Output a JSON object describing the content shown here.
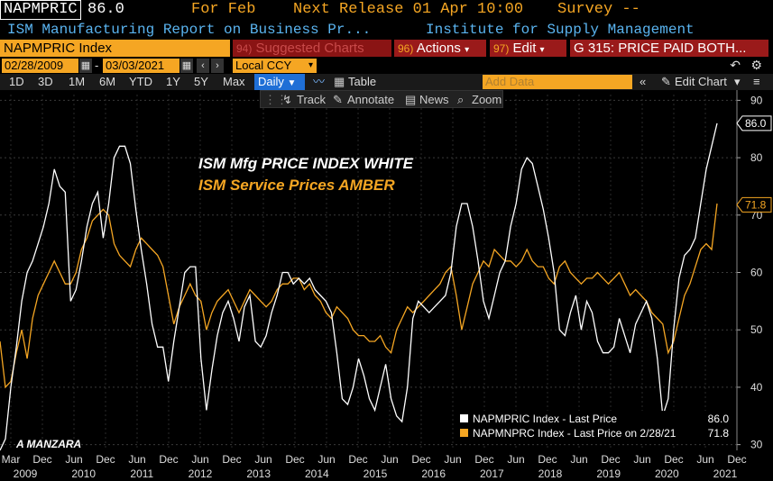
{
  "header": {
    "ticker": "NAPMPRIC",
    "last_value": "86.0",
    "for_label": "For Feb",
    "next_release": "Next Release 01 Apr 10:00",
    "survey": "Survey --"
  },
  "subheader": {
    "description": "ISM Manufacturing Report on Business Pr...",
    "source": "Institute for Supply Management"
  },
  "command_bar": {
    "index_field": "NAPMPRIC Index",
    "suggested_num": "94)",
    "suggested_label": "Suggested Charts",
    "actions_num": "96)",
    "actions_label": "Actions",
    "edit_num": "97)",
    "edit_label": "Edit",
    "graph_title": "G 315: PRICE PAID BOTH..."
  },
  "range": {
    "start": "02/28/2009",
    "end": "03/03/2021",
    "currency": "Local CCY"
  },
  "periods": [
    "1D",
    "3D",
    "1M",
    "6M",
    "YTD",
    "1Y",
    "5Y",
    "Max"
  ],
  "frequency": "Daily",
  "table_label": "Table",
  "add_data_placeholder": "Add Data",
  "edit_chart_label": "Edit Chart",
  "toolbar": {
    "track": "Track",
    "annotate": "Annotate",
    "news": "News",
    "zoom": "Zoom"
  },
  "overlay_titles": {
    "white": "ISM Mfg PRICE INDEX WHITE",
    "amber": "ISM Service Prices AMBER",
    "author": "A MANZARA"
  },
  "legend": [
    {
      "label": "NAPMPRIC Index - Last Price",
      "value": "86.0",
      "color": "#ffffff"
    },
    {
      "label": "NAPMNPRC Index - Last Price on 2/28/21",
      "value": "71.8",
      "color": "#f5a623"
    }
  ],
  "colors": {
    "white_series": "#ffffff",
    "amber_series": "#f5a623",
    "accent": "#f5a623",
    "button_red": "#9a1a1a",
    "blue": "#1f6fd6"
  },
  "chart_data": {
    "type": "line",
    "ylim": [
      29,
      91
    ],
    "yticks": [
      30,
      40,
      50,
      60,
      70,
      80,
      90
    ],
    "x_month_labels": [
      "Mar",
      "Dec",
      "Jun",
      "Dec",
      "Jun",
      "Dec",
      "Jun",
      "Dec",
      "Jun",
      "Dec",
      "Jun",
      "Dec",
      "Jun",
      "Dec",
      "Jun",
      "Dec",
      "Jun",
      "Dec",
      "Jun",
      "Dec",
      "Jun",
      "Dec",
      "Jun",
      "Dec"
    ],
    "x_year_labels": [
      "2009",
      "2010",
      "2011",
      "2012",
      "2013",
      "2014",
      "2015",
      "2016",
      "2017",
      "2018",
      "2019",
      "2020",
      "2021"
    ],
    "last_labels": [
      {
        "value": "86.0",
        "y": 86.0,
        "color": "#ffffff"
      },
      {
        "value": "71.8",
        "y": 71.8,
        "color": "#f5a623"
      }
    ],
    "series": [
      {
        "name": "NAPMPRIC Index - Last Price",
        "color": "#ffffff",
        "values": [
          29,
          31,
          40,
          47,
          55,
          60,
          62,
          65,
          68,
          72,
          78,
          75,
          74,
          55,
          57,
          62,
          68,
          72,
          74,
          66,
          72,
          80,
          82,
          82,
          79,
          71,
          64,
          58,
          51,
          47,
          47,
          41,
          48,
          54,
          60,
          61,
          61,
          45,
          36,
          43,
          49,
          53,
          55,
          52,
          48,
          54,
          56,
          48,
          47,
          49,
          53,
          56,
          60,
          60,
          58,
          59,
          58,
          59,
          57,
          56,
          55,
          53,
          46,
          38,
          37,
          40,
          45,
          42,
          38,
          36,
          40,
          44,
          38,
          35,
          34,
          40,
          52,
          55,
          54,
          53,
          54,
          55,
          56,
          60,
          68,
          72,
          72,
          68,
          62,
          55,
          52,
          56,
          60,
          62,
          68,
          72,
          78,
          80,
          79,
          75,
          71,
          66,
          60,
          50,
          49,
          53,
          56,
          50,
          55,
          53,
          48,
          46,
          46,
          47,
          52,
          49,
          46,
          51,
          53,
          55,
          52,
          45,
          35,
          38,
          50,
          59,
          63,
          64,
          66,
          72,
          78,
          82,
          86
        ]
      },
      {
        "name": "NAPMNPRC Index - Last Price on 2/28/21",
        "color": "#f5a623",
        "values": [
          48,
          40,
          41,
          46,
          50,
          45,
          52,
          56,
          58,
          60,
          62,
          60,
          58,
          58,
          60,
          64,
          66,
          69,
          70,
          71,
          70,
          65,
          63,
          62,
          61,
          64,
          66,
          65,
          64,
          63,
          61,
          56,
          51,
          54,
          56,
          58,
          56,
          55,
          50,
          53,
          55,
          56,
          57,
          55,
          53,
          55,
          57,
          56,
          55,
          54,
          55,
          57,
          58,
          58,
          59,
          59,
          57,
          58,
          56,
          55,
          53,
          52,
          54,
          53,
          52,
          50,
          49,
          49,
          48,
          48,
          49,
          47,
          46,
          50,
          52,
          54,
          53,
          54,
          55,
          56,
          57,
          58,
          60,
          61,
          56,
          50,
          54,
          58,
          60,
          62,
          61,
          64,
          63,
          62,
          62,
          61,
          62,
          64,
          62,
          61,
          61,
          59,
          58,
          61,
          62,
          60,
          59,
          58,
          59,
          59,
          60,
          59,
          58,
          59,
          60,
          58,
          56,
          57,
          56,
          55,
          53,
          52,
          51,
          46,
          48,
          52,
          56,
          58,
          61,
          64,
          65,
          64,
          72
        ]
      }
    ]
  }
}
